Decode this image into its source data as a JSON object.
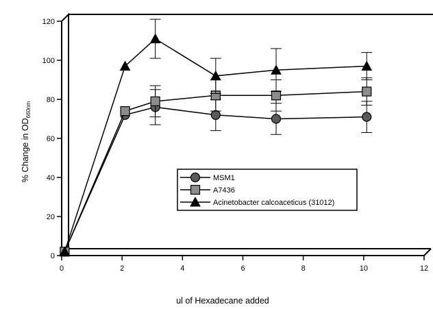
{
  "chart_data": {
    "type": "line",
    "title": "",
    "xlabel": "ul of Hexadecane added",
    "ylabel_main": "% Change in OD",
    "ylabel_sub": "660nm",
    "xlim": [
      0,
      12
    ],
    "ylim": [
      0,
      120
    ],
    "x_ticks": [
      "0",
      "2",
      "4",
      "6",
      "8",
      "10",
      "12"
    ],
    "y_ticks": [
      "0",
      "20",
      "40",
      "60",
      "80",
      "100",
      "120"
    ],
    "grid": false,
    "legend_position": "lower-right",
    "series": [
      {
        "name": "MSM1",
        "marker": "circle",
        "points": [
          {
            "x": 0.1,
            "y": 2,
            "err": 0
          },
          {
            "x": 2.1,
            "y": 72,
            "err": 0
          },
          {
            "x": 3.1,
            "y": 76,
            "err": 9
          },
          {
            "x": 5.1,
            "y": 72,
            "err": 8
          },
          {
            "x": 7.1,
            "y": 70,
            "err": 8
          },
          {
            "x": 10.1,
            "y": 71,
            "err": 8
          }
        ]
      },
      {
        "name": "A7436",
        "marker": "square",
        "points": [
          {
            "x": 0.1,
            "y": 2,
            "err": 0
          },
          {
            "x": 2.1,
            "y": 74,
            "err": 0
          },
          {
            "x": 3.1,
            "y": 79,
            "err": 8
          },
          {
            "x": 5.1,
            "y": 82,
            "err": 8
          },
          {
            "x": 7.1,
            "y": 82,
            "err": 8
          },
          {
            "x": 10.1,
            "y": 84,
            "err": 7
          }
        ]
      },
      {
        "name": "Acinetobacter calcoaceticus (31012)",
        "marker": "triangle",
        "points": [
          {
            "x": 0.1,
            "y": 2,
            "err": 0
          },
          {
            "x": 2.1,
            "y": 97,
            "err": 0
          },
          {
            "x": 3.1,
            "y": 111,
            "err": 10
          },
          {
            "x": 5.1,
            "y": 92,
            "err": 9
          },
          {
            "x": 7.1,
            "y": 95,
            "err": 11
          },
          {
            "x": 10.1,
            "y": 97,
            "err": 7
          }
        ]
      }
    ]
  }
}
